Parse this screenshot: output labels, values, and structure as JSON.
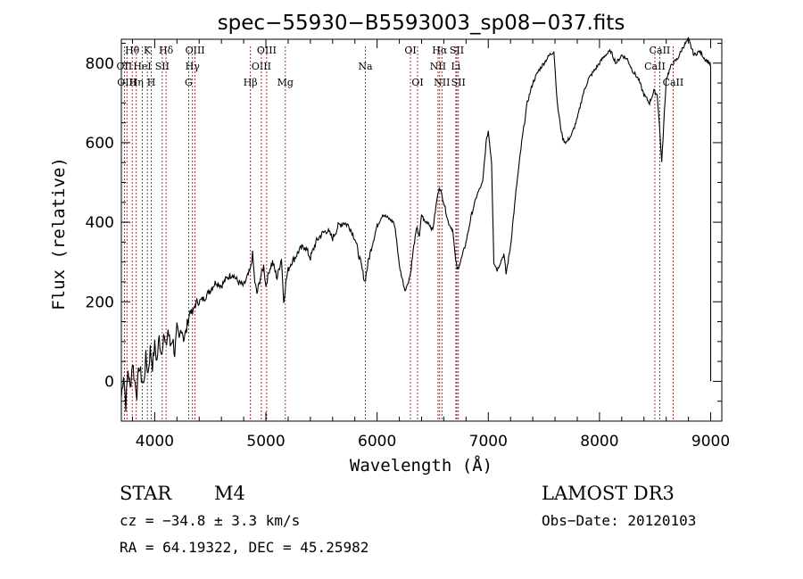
{
  "colors": {
    "line": "#8b0000",
    "spectrum": "#000000",
    "axis": "#000000",
    "background": "#ffffff"
  },
  "info": {
    "object_type": "STAR",
    "subclass": "M4",
    "survey": "LAMOST DR3",
    "cz": "cz = −34.8 ± 3.3 km/s",
    "obs_date": "Obs−Date: 20120103",
    "radec": "RA =  64.19322, DEC =  45.25982"
  },
  "chart_data": {
    "type": "line",
    "title": "spec−55930−B5593003_sp08−037.fits",
    "xlabel": "Wavelength (Å)",
    "ylabel": "Flux (relative)",
    "xlim": [
      3700,
      9100
    ],
    "ylim": [
      -100,
      860
    ],
    "xticks": [
      4000,
      5000,
      6000,
      7000,
      8000,
      9000
    ],
    "yticks": [
      0,
      200,
      400,
      600,
      800
    ],
    "series": [
      {
        "name": "flux",
        "x": [
          3700,
          3720,
          3740,
          3760,
          3780,
          3800,
          3820,
          3840,
          3860,
          3880,
          3900,
          3920,
          3940,
          3960,
          3980,
          4000,
          4020,
          4040,
          4060,
          4080,
          4100,
          4120,
          4140,
          4160,
          4180,
          4200,
          4220,
          4240,
          4260,
          4280,
          4300,
          4320,
          4340,
          4360,
          4380,
          4400,
          4450,
          4500,
          4550,
          4600,
          4650,
          4700,
          4750,
          4800,
          4830,
          4860,
          4880,
          4900,
          4920,
          4950,
          4980,
          5000,
          5030,
          5060,
          5100,
          5140,
          5160,
          5180,
          5200,
          5230,
          5260,
          5300,
          5350,
          5400,
          5450,
          5500,
          5550,
          5600,
          5650,
          5700,
          5750,
          5800,
          5850,
          5890,
          5920,
          5960,
          6000,
          6050,
          6100,
          6150,
          6170,
          6200,
          6250,
          6270,
          6300,
          6330,
          6360,
          6380,
          6400,
          6430,
          6460,
          6500,
          6540,
          6560,
          6600,
          6640,
          6680,
          6700,
          6720,
          6750,
          6800,
          6850,
          6900,
          6950,
          6980,
          7000,
          7030,
          7050,
          7080,
          7110,
          7140,
          7160,
          7200,
          7250,
          7300,
          7350,
          7400,
          7450,
          7500,
          7550,
          7590,
          7620,
          7650,
          7670,
          7700,
          7750,
          7800,
          7850,
          7900,
          7950,
          8000,
          8050,
          8100,
          8150,
          8200,
          8250,
          8300,
          8350,
          8400,
          8450,
          8490,
          8520,
          8540,
          8560,
          8600,
          8640,
          8660,
          8700,
          8750,
          8800,
          8850,
          8900,
          8950,
          8990,
          9000
        ],
        "y": [
          -40,
          20,
          -60,
          30,
          -20,
          50,
          0,
          -30,
          40,
          10,
          -10,
          60,
          20,
          80,
          40,
          90,
          50,
          110,
          70,
          120,
          80,
          130,
          90,
          110,
          70,
          130,
          100,
          140,
          110,
          120,
          150,
          180,
          170,
          190,
          200,
          200,
          210,
          230,
          250,
          240,
          260,
          270,
          250,
          240,
          260,
          280,
          320,
          250,
          220,
          260,
          290,
          240,
          280,
          300,
          260,
          310,
          200,
          250,
          280,
          300,
          310,
          330,
          340,
          310,
          350,
          370,
          380,
          360,
          390,
          400,
          390,
          360,
          300,
          250,
          300,
          350,
          390,
          420,
          410,
          400,
          370,
          290,
          230,
          240,
          270,
          340,
          390,
          360,
          420,
          400,
          400,
          380,
          460,
          490,
          450,
          400,
          380,
          320,
          280,
          300,
          350,
          420,
          470,
          500,
          600,
          630,
          550,
          300,
          280,
          300,
          320,
          270,
          340,
          480,
          600,
          700,
          750,
          780,
          800,
          820,
          830,
          700,
          640,
          610,
          600,
          620,
          660,
          720,
          760,
          780,
          800,
          820,
          830,
          800,
          820,
          810,
          780,
          760,
          720,
          700,
          730,
          720,
          640,
          550,
          760,
          790,
          800,
          810,
          840,
          860,
          820,
          830,
          810,
          800,
          790
        ]
      }
    ],
    "lines": [
      {
        "label": "Hθ",
        "x": 3798,
        "row": 0
      },
      {
        "label": "OII",
        "x": 3727,
        "row": 1
      },
      {
        "label": "OIII",
        "x": 3750,
        "row": 2
      },
      {
        "label": "Hη",
        "x": 3835,
        "row": 2
      },
      {
        "label": "HeI",
        "x": 3889,
        "row": 1
      },
      {
        "label": "K",
        "x": 3934,
        "row": 0
      },
      {
        "label": "H",
        "x": 3969,
        "row": 2
      },
      {
        "label": "SII",
        "x": 4068,
        "row": 1
      },
      {
        "label": "Hδ",
        "x": 4102,
        "row": 0
      },
      {
        "label": "G",
        "x": 4305,
        "row": 2
      },
      {
        "label": "Hγ",
        "x": 4340,
        "row": 1
      },
      {
        "label": "OIII",
        "x": 4363,
        "row": 0
      },
      {
        "label": "Hβ",
        "x": 4861,
        "row": 2
      },
      {
        "label": "OIII",
        "x": 4959,
        "row": 1
      },
      {
        "label": "OIII",
        "x": 5007,
        "row": 0
      },
      {
        "label": "Mg",
        "x": 5175,
        "row": 2
      },
      {
        "label": "Na",
        "x": 5894,
        "row": 1
      },
      {
        "label": "OI",
        "x": 6300,
        "row": 0
      },
      {
        "label": "OI",
        "x": 6364,
        "row": 2
      },
      {
        "label": "NII",
        "x": 6548,
        "row": 1
      },
      {
        "label": "Hα",
        "x": 6563,
        "row": 0
      },
      {
        "label": "NII",
        "x": 6583,
        "row": 2
      },
      {
        "label": "Li",
        "x": 6708,
        "row": 1
      },
      {
        "label": "SII",
        "x": 6717,
        "row": 0
      },
      {
        "label": "SII",
        "x": 6731,
        "row": 2
      },
      {
        "label": "CaII",
        "x": 8498,
        "row": 1
      },
      {
        "label": "CaII",
        "x": 8542,
        "row": 0
      },
      {
        "label": "CaII",
        "x": 8662,
        "row": 2
      }
    ]
  }
}
